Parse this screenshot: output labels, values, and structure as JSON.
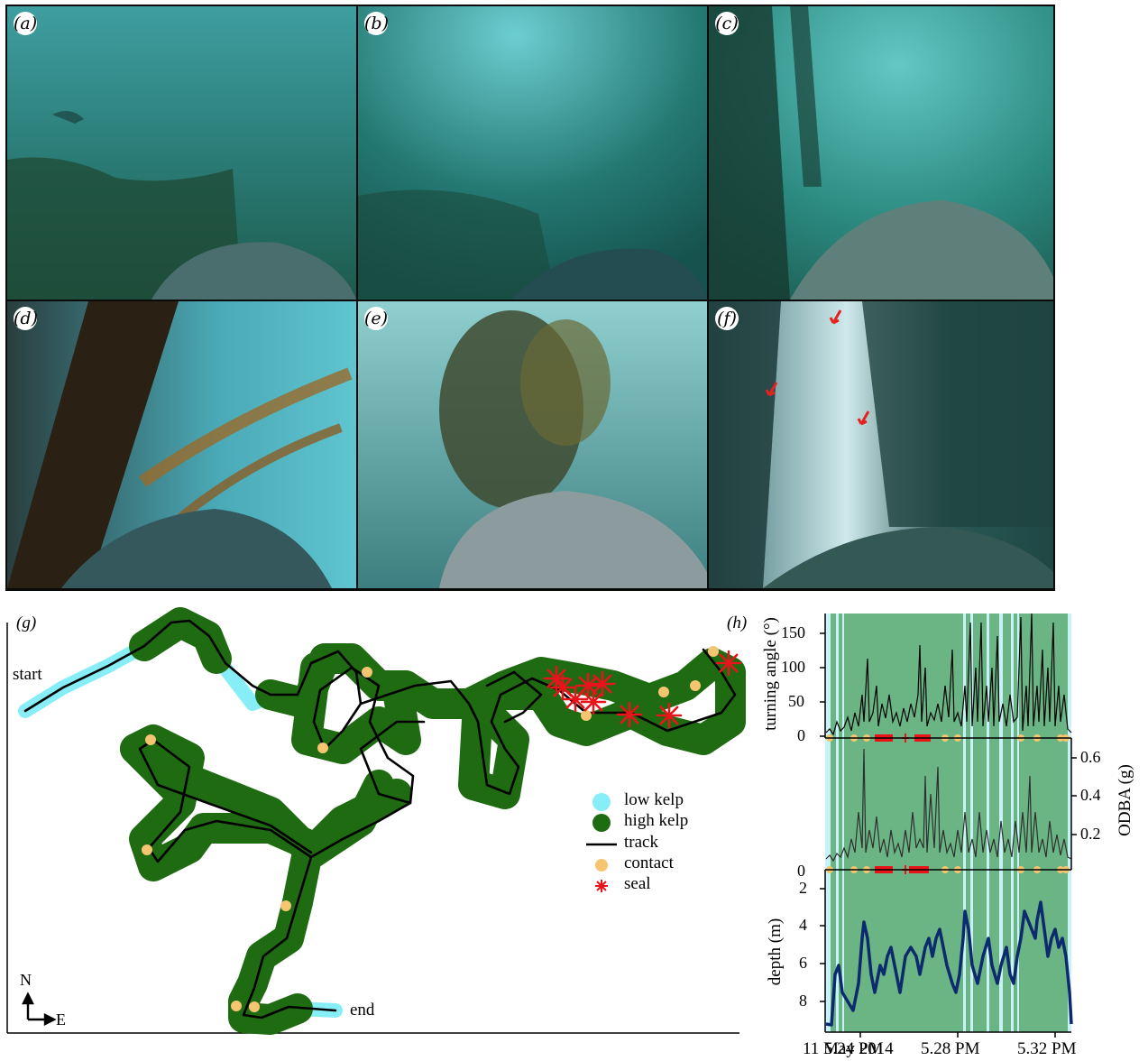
{
  "panels": {
    "a": "(a)",
    "b": "(b)",
    "c": "(c)",
    "d": "(d)",
    "e": "(e)",
    "f": "(f)",
    "g": "(g)",
    "h": "(h)"
  },
  "map": {
    "start_label": "start",
    "end_label": "end",
    "compass_n": "N",
    "compass_e": "E",
    "legend": [
      {
        "key": "low_kelp",
        "label": "low kelp",
        "color": "#87EEF7"
      },
      {
        "key": "high_kelp",
        "label": "high kelp",
        "color": "#1F6B12"
      },
      {
        "key": "track",
        "label": "track",
        "color": "#000000"
      },
      {
        "key": "contact",
        "label": "contact",
        "color": "#F5C572"
      },
      {
        "key": "seal",
        "label": "seal",
        "color": "#E8141A"
      }
    ]
  },
  "timeseries": {
    "turning_angle": {
      "ylabel": "turning angle (°)",
      "ticks": [
        "0",
        "50",
        "100",
        "150"
      ]
    },
    "odba": {
      "ylabel": "ODBA (g)",
      "ticks": [
        "0.2",
        "0.4",
        "0.6"
      ],
      "bottom_tick": "0"
    },
    "depth": {
      "ylabel": "depth (m)",
      "ticks": [
        "2",
        "4",
        "6",
        "8"
      ]
    },
    "x_ticks": [
      "5.24 PM",
      "5.28 PM",
      "5.32 PM"
    ],
    "date": "11 May 2014",
    "colors": {
      "high_kelp_bg": "#6BB585",
      "low_kelp_band": "#C8F2F7",
      "depth_line": "#0D2A6E"
    }
  }
}
